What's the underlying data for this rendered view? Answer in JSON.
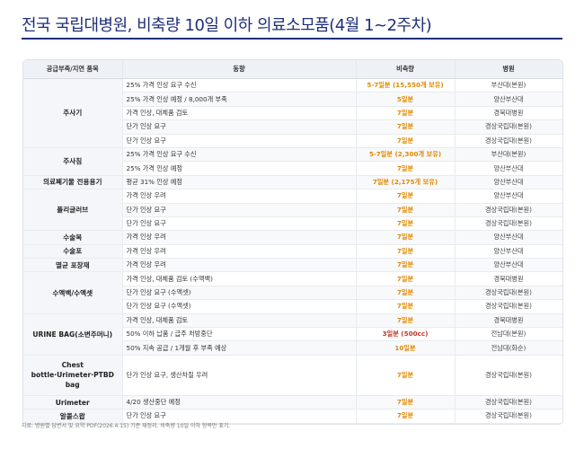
{
  "title": "전국 국립대병원, 비축량 10일 이하 의료소모품(4월 1~2주차)",
  "colors": {
    "title": "#1f2f7a",
    "stock": "#e08a00",
    "critical": "#c0392b"
  },
  "table": {
    "headers": [
      "공급부족/지연 품목",
      "동향",
      "비축량",
      "병원"
    ],
    "groups": [
      {
        "item": "주사기",
        "rows": [
          {
            "trend": "25% 가격 인상 요구 수신",
            "stock": "5-7일분 (15,550개 보유)",
            "hospital": "부산대(본원)"
          },
          {
            "trend": "25% 가격 인상 예정 / 8,000개 부족",
            "stock": "5일분",
            "hospital": "양산부산대"
          },
          {
            "trend": "가격 인상, 대체품 검토",
            "stock": "7일분",
            "hospital": "경북대병원"
          },
          {
            "trend": "단가 인상 요구",
            "stock": "7일분",
            "hospital": "경상국립대(본원)"
          },
          {
            "trend": "단가 인상 요구",
            "stock": "7일분",
            "hospital": "경상국립대(본원)"
          }
        ]
      },
      {
        "item": "주사침",
        "rows": [
          {
            "trend": "25% 가격 인상 요구 수신",
            "stock": "5-7일분 (2,300개 보유)",
            "hospital": "부산대(본원)"
          },
          {
            "trend": "25% 가격 인상 예정",
            "stock": "7일분",
            "hospital": "양산부산대"
          }
        ]
      },
      {
        "item": "의료폐기물 전용용기",
        "rows": [
          {
            "trend": "평균 31% 인상 예정",
            "stock": "7일분 (2,175개 보유)",
            "hospital": "양산부산대"
          }
        ]
      },
      {
        "item": "폴리글러브",
        "rows": [
          {
            "trend": "가격 인상 우려",
            "stock": "7일분",
            "hospital": "양산부산대"
          },
          {
            "trend": "단가 인상 요구",
            "stock": "7일분",
            "hospital": "경상국립대(본원)"
          },
          {
            "trend": "단가 인상 요구",
            "stock": "7일분",
            "hospital": "경상국립대(본원)"
          }
        ]
      },
      {
        "item": "수술복",
        "rows": [
          {
            "trend": "가격 인상 우려",
            "stock": "7일분",
            "hospital": "양산부산대"
          }
        ]
      },
      {
        "item": "수술포",
        "rows": [
          {
            "trend": "가격 인상 우려",
            "stock": "7일분",
            "hospital": "양산부산대"
          }
        ]
      },
      {
        "item": "멸균 포장재",
        "rows": [
          {
            "trend": "가격 인상 우려",
            "stock": "7일분",
            "hospital": "양산부산대"
          }
        ]
      },
      {
        "item": "수액백/수액셋",
        "rows": [
          {
            "trend": "가격 인상, 대체품 검토 (수액백)",
            "stock": "7일분",
            "hospital": "경북대병원"
          },
          {
            "trend": "단가 인상 요구 (수액셋)",
            "stock": "7일분",
            "hospital": "경상국립대(본원)"
          },
          {
            "trend": "단가 인상 요구 (수액셋)",
            "stock": "7일분",
            "hospital": "경상국립대(본원)"
          }
        ]
      },
      {
        "item": "URINE BAG(소변주머니)",
        "rows": [
          {
            "trend": "가격 인상, 대체품 검토",
            "stock": "7일분",
            "hospital": "경북대병원"
          },
          {
            "trend": "50% 이하 납품 / 급주 처방중단",
            "stock": "3일분 (500cc)",
            "hospital": "전남대(본원)",
            "critical": true
          },
          {
            "trend": "50% 지속 공급 / 1개월 후 부족 예상",
            "stock": "10일분",
            "hospital": "전남대(화순)"
          }
        ]
      },
      {
        "item": "Chest bottle·Urimeter·PTBD bag",
        "tall": true,
        "rows": [
          {
            "trend": "단가 인상 요구, 생산차질 우려",
            "stock": "7일분",
            "hospital": "경상국립대(본원)"
          }
        ]
      },
      {
        "item": "Urimeter",
        "rows": [
          {
            "trend": "4/20 생산중단 예정",
            "stock": "7일분",
            "hospital": "경상국립대(본원)"
          }
        ]
      },
      {
        "item": "알콜스왑",
        "rows": [
          {
            "trend": "단가 인상 요구",
            "stock": "7일분",
            "hospital": "경상국립대(본원)"
          }
        ]
      }
    ]
  },
  "footnote": "자료: 병원별 답변서 및 요약 PDF(2026.4.15) 기준 재정리. 비축량 10일 이하 항목만 표기."
}
